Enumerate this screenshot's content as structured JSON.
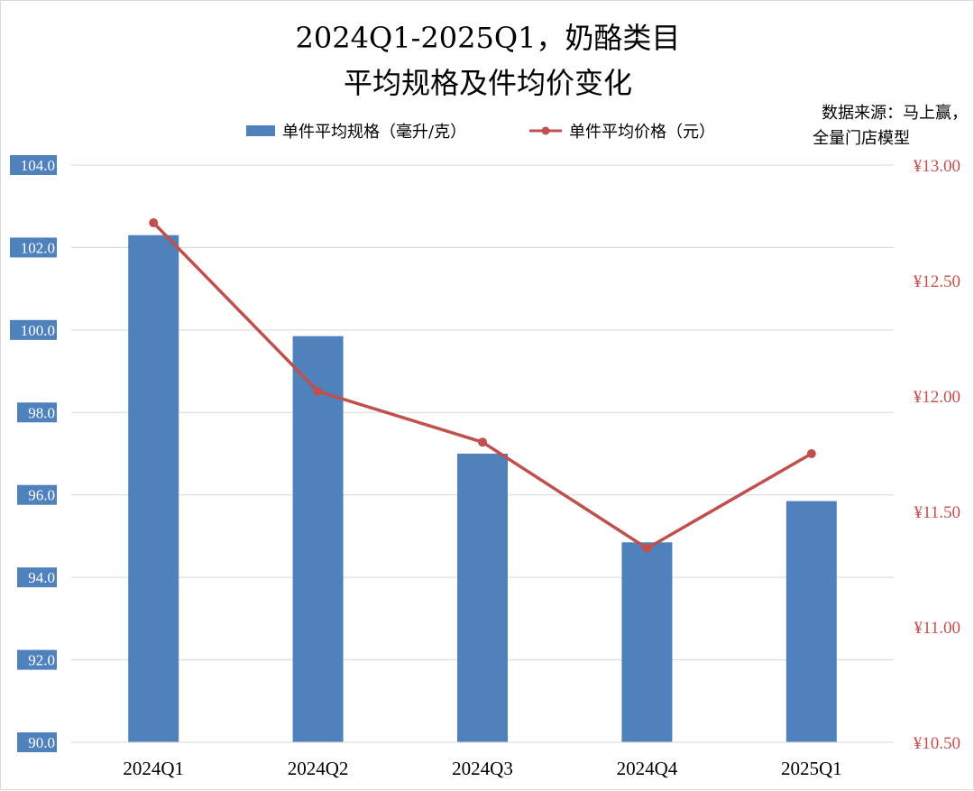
{
  "chart_data": {
    "type": "bar",
    "title_lines": [
      "2024Q1-2025Q1，奶酪类目",
      "平均规格及件均价变化"
    ],
    "source_lines": [
      "数据来源：马上赢，",
      "全量门店模型"
    ],
    "categories": [
      "2024Q1",
      "2024Q2",
      "2024Q3",
      "2024Q4",
      "2025Q1"
    ],
    "series": [
      {
        "name": "单件平均规格（毫升/克）",
        "type": "bar",
        "axis": "left",
        "color": "#4f81bd",
        "values": [
          102.3,
          99.85,
          97.0,
          94.85,
          95.85
        ]
      },
      {
        "name": "单件平均价格（元）",
        "type": "line",
        "axis": "right",
        "color": "#c0504d",
        "values": [
          12.75,
          12.02,
          11.8,
          11.34,
          11.75
        ]
      }
    ],
    "y_left": {
      "range": [
        90,
        104
      ],
      "ticks": [
        "90.0",
        "92.0",
        "94.0",
        "96.0",
        "98.0",
        "100.0",
        "102.0",
        "104.0"
      ],
      "label_bg_color": "#4f81bd"
    },
    "y_right": {
      "range": [
        10.5,
        13.0
      ],
      "ticks": [
        "¥10.50",
        "¥11.00",
        "¥11.50",
        "¥12.00",
        "¥12.50",
        "¥13.00"
      ],
      "label_color": "#c0504d"
    },
    "grid": true,
    "legend_position": "top"
  }
}
